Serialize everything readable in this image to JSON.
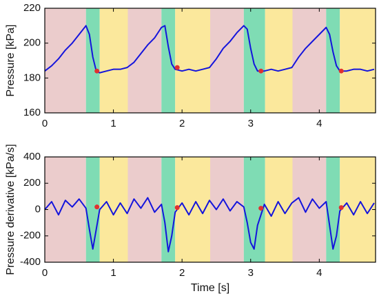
{
  "chart_data": [
    {
      "type": "line",
      "ylabel": "Pressure [kPa]",
      "xlim": [
        0,
        4.82
      ],
      "ylim": [
        160,
        220
      ],
      "xticks": [
        0,
        1,
        2,
        3,
        4
      ],
      "yticks": [
        160,
        180,
        200,
        220
      ],
      "phases": [
        {
          "start": 0,
          "end": 0.6,
          "color": "#ebcccc"
        },
        {
          "start": 0.6,
          "end": 0.8,
          "color": "#7fdcb4"
        },
        {
          "start": 0.8,
          "end": 1.21,
          "color": "#fbe89c"
        },
        {
          "start": 1.21,
          "end": 1.7,
          "color": "#ebcccc"
        },
        {
          "start": 1.7,
          "end": 1.9,
          "color": "#7fdcb4"
        },
        {
          "start": 1.9,
          "end": 2.41,
          "color": "#fbe89c"
        },
        {
          "start": 2.41,
          "end": 2.9,
          "color": "#ebcccc"
        },
        {
          "start": 2.9,
          "end": 3.21,
          "color": "#7fdcb4"
        },
        {
          "start": 3.21,
          "end": 3.61,
          "color": "#fbe89c"
        },
        {
          "start": 3.61,
          "end": 4.1,
          "color": "#ebcccc"
        },
        {
          "start": 4.1,
          "end": 4.3,
          "color": "#7fdcb4"
        },
        {
          "start": 4.3,
          "end": 4.82,
          "color": "#fbe89c"
        }
      ],
      "x": [
        0,
        0.1,
        0.2,
        0.3,
        0.4,
        0.5,
        0.6,
        0.65,
        0.7,
        0.75,
        0.8,
        0.9,
        1.0,
        1.1,
        1.2,
        1.3,
        1.4,
        1.5,
        1.6,
        1.7,
        1.75,
        1.8,
        1.85,
        1.9,
        2.0,
        2.1,
        2.2,
        2.3,
        2.4,
        2.5,
        2.6,
        2.7,
        2.8,
        2.9,
        2.95,
        3.0,
        3.05,
        3.1,
        3.2,
        3.3,
        3.4,
        3.5,
        3.6,
        3.7,
        3.8,
        3.9,
        4.0,
        4.1,
        4.15,
        4.2,
        4.25,
        4.3,
        4.4,
        4.5,
        4.6,
        4.7,
        4.8
      ],
      "series": [
        {
          "color": "#1414dc",
          "values": [
            184,
            187,
            191,
            196,
            200,
            205,
            210,
            205,
            192,
            184,
            183,
            184,
            185,
            185,
            186,
            189,
            194,
            199,
            203,
            209,
            210,
            198,
            188,
            185,
            184,
            185,
            184,
            185,
            186,
            191,
            197,
            201,
            206,
            210,
            208,
            197,
            188,
            184,
            184,
            185,
            184,
            185,
            186,
            192,
            197,
            201,
            205,
            209,
            205,
            195,
            187,
            184,
            184,
            185,
            185,
            184,
            185
          ]
        }
      ],
      "markers": {
        "color": "#e03030",
        "x": [
          0.76,
          1.93,
          3.15,
          4.32
        ],
        "values": [
          184,
          186,
          184,
          184
        ]
      }
    },
    {
      "type": "line",
      "ylabel": "Pressure derivative [kPa/s]",
      "xlabel": "Time [s]",
      "xlim": [
        0,
        4.82
      ],
      "ylim": [
        -400,
        400
      ],
      "xticks": [
        0,
        1,
        2,
        3,
        4
      ],
      "yticks": [
        -400,
        -200,
        0,
        200,
        400
      ],
      "phases": [
        {
          "start": 0,
          "end": 0.6,
          "color": "#ebcccc"
        },
        {
          "start": 0.6,
          "end": 0.8,
          "color": "#7fdcb4"
        },
        {
          "start": 0.8,
          "end": 1.21,
          "color": "#fbe89c"
        },
        {
          "start": 1.21,
          "end": 1.7,
          "color": "#ebcccc"
        },
        {
          "start": 1.7,
          "end": 1.9,
          "color": "#7fdcb4"
        },
        {
          "start": 1.9,
          "end": 2.41,
          "color": "#fbe89c"
        },
        {
          "start": 2.41,
          "end": 2.9,
          "color": "#ebcccc"
        },
        {
          "start": 2.9,
          "end": 3.21,
          "color": "#7fdcb4"
        },
        {
          "start": 3.21,
          "end": 3.61,
          "color": "#fbe89c"
        },
        {
          "start": 3.61,
          "end": 4.1,
          "color": "#ebcccc"
        },
        {
          "start": 4.1,
          "end": 4.3,
          "color": "#7fdcb4"
        },
        {
          "start": 4.3,
          "end": 4.82,
          "color": "#fbe89c"
        }
      ],
      "x": [
        0,
        0.1,
        0.2,
        0.3,
        0.4,
        0.5,
        0.6,
        0.65,
        0.7,
        0.75,
        0.8,
        0.9,
        1.0,
        1.1,
        1.2,
        1.3,
        1.4,
        1.5,
        1.6,
        1.7,
        1.75,
        1.8,
        1.85,
        1.9,
        2.0,
        2.1,
        2.2,
        2.3,
        2.4,
        2.5,
        2.6,
        2.7,
        2.8,
        2.9,
        2.95,
        3.0,
        3.05,
        3.1,
        3.2,
        3.3,
        3.4,
        3.5,
        3.6,
        3.7,
        3.8,
        3.9,
        4.0,
        4.1,
        4.15,
        4.2,
        4.25,
        4.3,
        4.4,
        4.5,
        4.6,
        4.7,
        4.8
      ],
      "series": [
        {
          "color": "#1414dc",
          "values": [
            0,
            60,
            -40,
            70,
            20,
            80,
            10,
            -150,
            -300,
            -150,
            0,
            60,
            -40,
            50,
            -30,
            80,
            10,
            90,
            -20,
            40,
            -100,
            -320,
            -200,
            -20,
            50,
            -40,
            60,
            -30,
            70,
            0,
            80,
            -10,
            60,
            20,
            -100,
            -250,
            -300,
            -120,
            40,
            -50,
            60,
            -30,
            50,
            90,
            -20,
            80,
            10,
            60,
            -120,
            -300,
            -200,
            -10,
            50,
            -40,
            60,
            -30,
            50
          ]
        }
      ],
      "markers": {
        "color": "#e03030",
        "x": [
          0.76,
          1.93,
          3.15,
          4.32
        ],
        "values": [
          20,
          15,
          10,
          15
        ]
      }
    }
  ]
}
